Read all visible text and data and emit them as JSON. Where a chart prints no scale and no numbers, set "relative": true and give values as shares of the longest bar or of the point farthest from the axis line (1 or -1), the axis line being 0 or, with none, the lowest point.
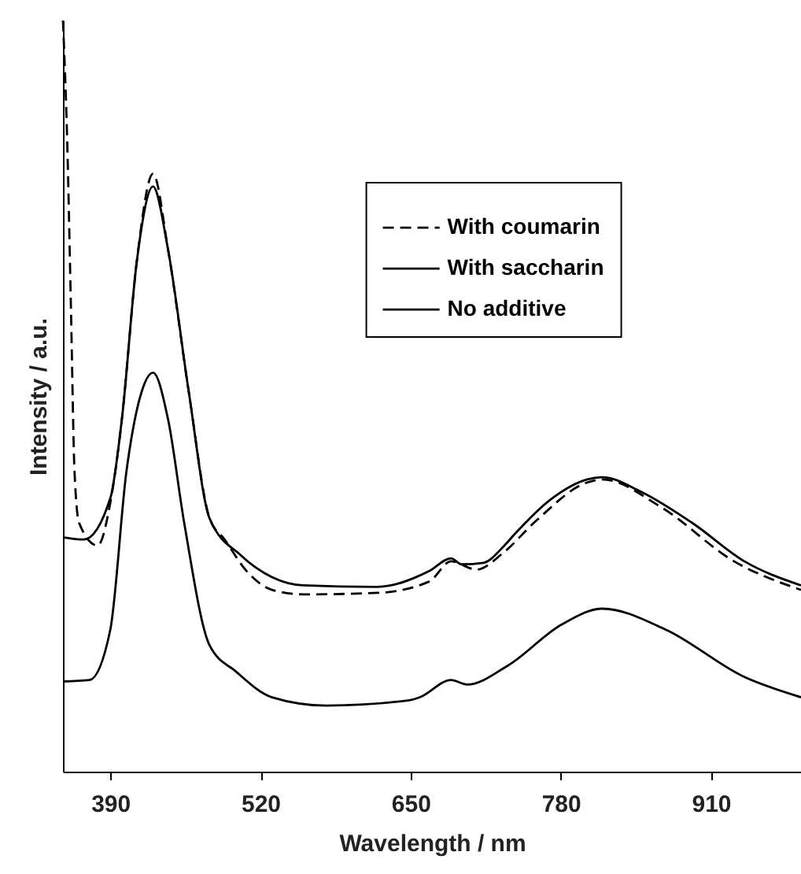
{
  "chart_data": {
    "type": "line",
    "xlabel": "Wavelength / nm",
    "ylabel": "Intensity / a.u.",
    "relative": true,
    "xlim": [
      349,
      988
    ],
    "xticks": [
      390,
      520,
      650,
      780,
      910
    ],
    "grid": false,
    "legend": "top right",
    "marker": "none",
    "series": [
      {
        "name": "With coumarin",
        "color": "#000000",
        "line_style": "dashed",
        "x": [
          349,
          353,
          356,
          359,
          363,
          379,
          390,
          400,
          413,
          427,
          440,
          458,
          476,
          489,
          508,
          530,
          557,
          621,
          666,
          685,
          707,
          730,
          758,
          803,
          816,
          867,
          930,
          988
        ],
        "values": [
          1.0,
          0.821,
          0.611,
          0.4,
          0.331,
          0.301,
          0.358,
          0.469,
          0.68,
          0.796,
          0.695,
          0.505,
          0.337,
          0.309,
          0.267,
          0.242,
          0.236,
          0.238,
          0.253,
          0.28,
          0.269,
          0.291,
          0.333,
          0.385,
          0.389,
          0.352,
          0.28,
          0.242
        ]
      },
      {
        "name": "With saccharin",
        "color": "#000000",
        "line_style": "solid",
        "x": [
          349,
          367,
          390,
          400,
          413,
          427,
          440,
          458,
          476,
          503,
          530,
          557,
          621,
          666,
          685,
          694,
          713,
          730,
          740,
          771,
          803,
          816,
          849,
          894,
          939,
          988
        ],
        "values": [
          0.312,
          0.309,
          0.364,
          0.469,
          0.68,
          0.779,
          0.695,
          0.505,
          0.337,
          0.288,
          0.259,
          0.248,
          0.246,
          0.267,
          0.284,
          0.276,
          0.278,
          0.299,
          0.316,
          0.362,
          0.389,
          0.392,
          0.373,
          0.331,
          0.28,
          0.248
        ]
      },
      {
        "name": "No additive",
        "color": "#000000",
        "line_style": "solid",
        "x": [
          349,
          372,
          390,
          404,
          417,
          427,
          440,
          454,
          476,
          499,
          530,
          577,
          649,
          658,
          685,
          699,
          734,
          781,
          816,
          871,
          939,
          988
        ],
        "values": [
          0.12,
          0.122,
          0.189,
          0.4,
          0.505,
          0.531,
          0.469,
          0.331,
          0.168,
          0.133,
          0.099,
          0.088,
          0.095,
          0.099,
          0.122,
          0.116,
          0.141,
          0.196,
          0.217,
          0.189,
          0.126,
          0.099
        ]
      }
    ]
  }
}
